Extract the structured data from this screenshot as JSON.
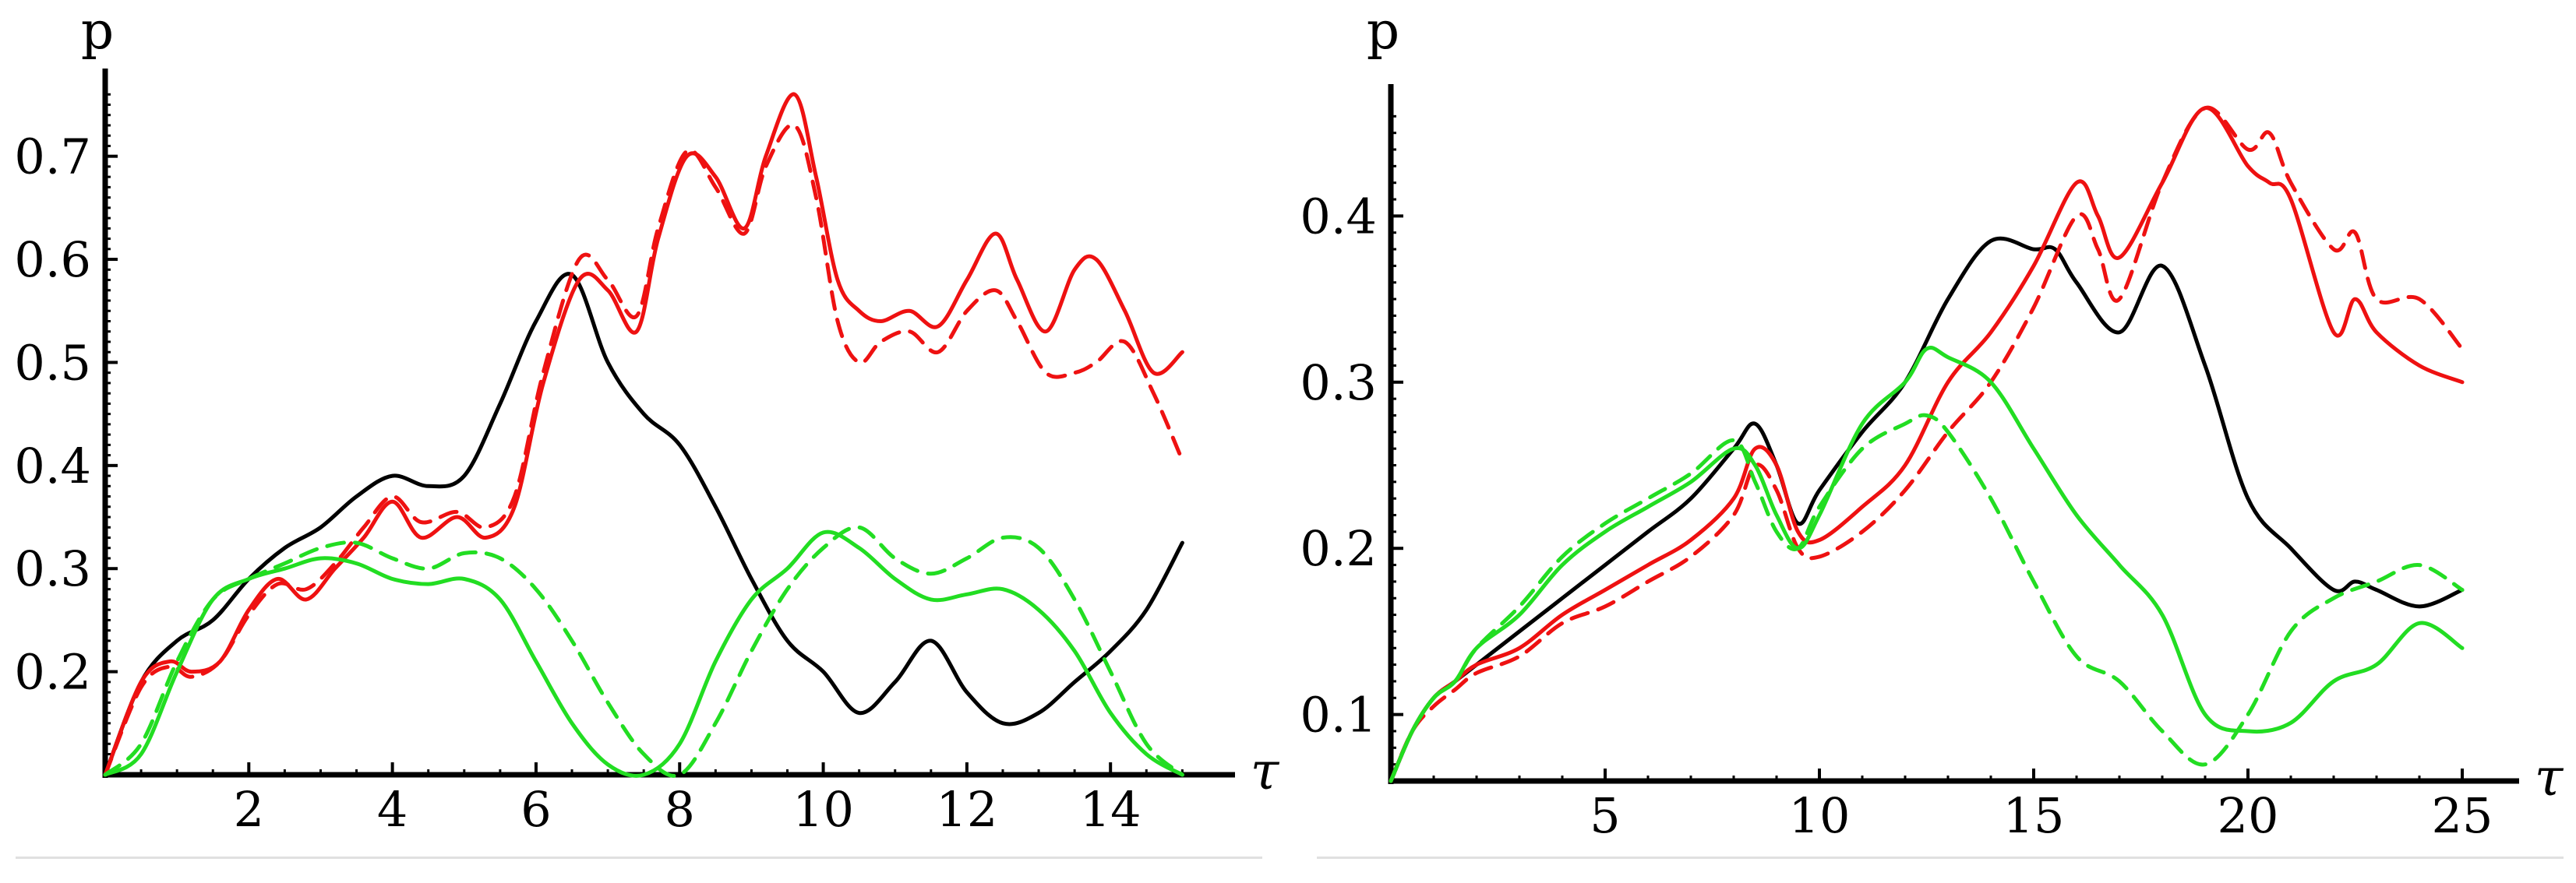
{
  "colors": {
    "red": "#ee1111",
    "green": "#22dd22",
    "black": "#000000"
  },
  "chart_data": [
    {
      "type": "line",
      "xlabel": "τ",
      "ylabel": "p",
      "xlim": [
        0,
        15.3
      ],
      "ylim": [
        0.1,
        0.77
      ],
      "xticks": [
        2,
        4,
        6,
        8,
        10,
        12,
        14
      ],
      "yticks": [
        0.2,
        0.3,
        0.4,
        0.5,
        0.6,
        0.7
      ],
      "series": [
        {
          "color": "black",
          "dashed": false,
          "x": [
            0,
            0.5,
            1,
            1.5,
            2,
            2.5,
            3,
            3.5,
            4,
            4.5,
            5,
            5.5,
            6,
            6.5,
            7,
            7.5,
            8,
            8.5,
            9,
            9.5,
            10,
            10.5,
            11,
            11.5,
            12,
            12.5,
            13,
            13.5,
            14,
            14.5,
            15
          ],
          "y": [
            0.1,
            0.19,
            0.23,
            0.25,
            0.29,
            0.32,
            0.34,
            0.37,
            0.39,
            0.38,
            0.39,
            0.46,
            0.54,
            0.585,
            0.5,
            0.45,
            0.42,
            0.36,
            0.29,
            0.23,
            0.2,
            0.16,
            0.19,
            0.23,
            0.18,
            0.15,
            0.16,
            0.19,
            0.22,
            0.26,
            0.325
          ]
        },
        {
          "color": "red",
          "dashed": false,
          "x": [
            0,
            0.5,
            0.9,
            1.2,
            1.6,
            2,
            2.4,
            2.8,
            3.2,
            3.6,
            4,
            4.4,
            4.9,
            5.3,
            5.7,
            6.1,
            6.6,
            7.0,
            7.4,
            7.7,
            8.1,
            8.5,
            8.9,
            9.2,
            9.6,
            9.9,
            10.2,
            10.5,
            10.8,
            11.2,
            11.6,
            12,
            12.4,
            12.7,
            13.1,
            13.5,
            13.8,
            14.2,
            14.6,
            15
          ],
          "y": [
            0.1,
            0.19,
            0.21,
            0.2,
            0.21,
            0.26,
            0.29,
            0.27,
            0.3,
            0.33,
            0.365,
            0.33,
            0.35,
            0.33,
            0.36,
            0.48,
            0.58,
            0.57,
            0.53,
            0.62,
            0.7,
            0.68,
            0.63,
            0.7,
            0.76,
            0.68,
            0.58,
            0.55,
            0.54,
            0.55,
            0.535,
            0.58,
            0.625,
            0.58,
            0.53,
            0.59,
            0.6,
            0.55,
            0.49,
            0.51
          ]
        },
        {
          "color": "red",
          "dashed": true,
          "x": [
            0,
            0.5,
            0.9,
            1.2,
            1.6,
            2,
            2.4,
            2.8,
            3.2,
            3.6,
            4,
            4.4,
            4.9,
            5.3,
            5.7,
            6.1,
            6.6,
            7.0,
            7.4,
            7.7,
            8.1,
            8.5,
            8.9,
            9.2,
            9.6,
            9.9,
            10.2,
            10.5,
            10.8,
            11.2,
            11.6,
            12,
            12.4,
            12.7,
            13.1,
            13.5,
            13.8,
            14.2,
            14.6,
            15
          ],
          "y": [
            0.1,
            0.185,
            0.205,
            0.195,
            0.21,
            0.255,
            0.285,
            0.28,
            0.305,
            0.34,
            0.37,
            0.345,
            0.355,
            0.34,
            0.37,
            0.49,
            0.6,
            0.58,
            0.545,
            0.63,
            0.705,
            0.67,
            0.625,
            0.69,
            0.73,
            0.66,
            0.54,
            0.5,
            0.52,
            0.53,
            0.51,
            0.55,
            0.57,
            0.54,
            0.49,
            0.49,
            0.5,
            0.52,
            0.47,
            0.405
          ]
        },
        {
          "color": "green",
          "dashed": false,
          "x": [
            0,
            0.5,
            1,
            1.5,
            2,
            2.5,
            3,
            3.5,
            4,
            4.5,
            5,
            5.5,
            6,
            6.5,
            7,
            7.5,
            8,
            8.5,
            9,
            9.5,
            10,
            10.5,
            11,
            11.5,
            12,
            12.5,
            13,
            13.5,
            14,
            14.5,
            15
          ],
          "y": [
            0.1,
            0.12,
            0.2,
            0.27,
            0.29,
            0.3,
            0.31,
            0.305,
            0.29,
            0.285,
            0.29,
            0.27,
            0.21,
            0.15,
            0.11,
            0.1,
            0.13,
            0.21,
            0.27,
            0.3,
            0.335,
            0.32,
            0.29,
            0.27,
            0.275,
            0.28,
            0.26,
            0.22,
            0.16,
            0.12,
            0.1
          ]
        },
        {
          "color": "green",
          "dashed": true,
          "x": [
            0,
            0.5,
            1,
            1.5,
            2,
            2.5,
            3,
            3.5,
            4,
            4.5,
            5,
            5.5,
            6,
            6.5,
            7,
            7.5,
            8,
            8.5,
            9,
            9.5,
            10,
            10.5,
            11,
            11.5,
            12,
            12.5,
            13,
            13.5,
            14,
            14.5,
            15
          ],
          "y": [
            0.1,
            0.13,
            0.21,
            0.27,
            0.29,
            0.305,
            0.32,
            0.325,
            0.31,
            0.3,
            0.315,
            0.31,
            0.28,
            0.23,
            0.17,
            0.12,
            0.1,
            0.15,
            0.22,
            0.28,
            0.32,
            0.34,
            0.31,
            0.295,
            0.31,
            0.33,
            0.32,
            0.27,
            0.2,
            0.13,
            0.1
          ]
        }
      ]
    },
    {
      "type": "line",
      "xlabel": "τ",
      "ylabel": "p",
      "xlim": [
        0,
        25.6
      ],
      "ylim": [
        0.06,
        0.47
      ],
      "xticks": [
        5,
        10,
        15,
        20,
        25
      ],
      "yticks": [
        0.1,
        0.2,
        0.3,
        0.4
      ],
      "series": [
        {
          "color": "black",
          "dashed": false,
          "x": [
            0,
            0.5,
            1,
            1.5,
            2,
            3,
            4,
            5,
            6,
            7,
            8,
            8.5,
            9,
            9.5,
            10,
            11,
            12,
            13,
            14,
            15,
            15.5,
            16,
            17,
            18,
            19,
            20,
            21,
            22,
            22.5,
            23,
            24,
            25
          ],
          "y": [
            0.06,
            0.09,
            0.11,
            0.12,
            0.13,
            0.15,
            0.17,
            0.19,
            0.21,
            0.23,
            0.26,
            0.275,
            0.25,
            0.215,
            0.235,
            0.27,
            0.3,
            0.35,
            0.385,
            0.38,
            0.38,
            0.36,
            0.33,
            0.37,
            0.31,
            0.23,
            0.2,
            0.175,
            0.18,
            0.175,
            0.165,
            0.175
          ]
        },
        {
          "color": "red",
          "dashed": false,
          "x": [
            0,
            0.5,
            1,
            1.5,
            2,
            3,
            4,
            5,
            6,
            7,
            8,
            8.5,
            9,
            9.5,
            10,
            11,
            12,
            13,
            14,
            15,
            16,
            16.5,
            17,
            18,
            19,
            20,
            20.5,
            21,
            22,
            22.5,
            23,
            24,
            25
          ],
          "y": [
            0.06,
            0.09,
            0.11,
            0.12,
            0.13,
            0.14,
            0.16,
            0.175,
            0.19,
            0.205,
            0.23,
            0.26,
            0.25,
            0.21,
            0.205,
            0.225,
            0.25,
            0.3,
            0.33,
            0.37,
            0.42,
            0.4,
            0.375,
            0.42,
            0.465,
            0.43,
            0.42,
            0.41,
            0.33,
            0.35,
            0.33,
            0.31,
            0.3
          ]
        },
        {
          "color": "red",
          "dashed": true,
          "x": [
            0,
            0.5,
            1,
            1.5,
            2,
            3,
            4,
            5,
            6,
            7,
            8,
            8.5,
            9,
            9.5,
            10,
            11,
            12,
            13,
            14,
            15,
            16,
            16.5,
            17,
            18,
            19,
            20,
            20.5,
            21,
            22,
            22.5,
            23,
            24,
            25
          ],
          "y": [
            0.06,
            0.09,
            0.105,
            0.115,
            0.125,
            0.135,
            0.155,
            0.165,
            0.18,
            0.195,
            0.22,
            0.25,
            0.235,
            0.2,
            0.195,
            0.21,
            0.235,
            0.27,
            0.3,
            0.345,
            0.4,
            0.38,
            0.35,
            0.42,
            0.465,
            0.44,
            0.45,
            0.42,
            0.38,
            0.39,
            0.35,
            0.35,
            0.32
          ]
        },
        {
          "color": "green",
          "dashed": false,
          "x": [
            0,
            0.5,
            1,
            1.5,
            2,
            3,
            4,
            5,
            6,
            7,
            8,
            8.5,
            9,
            9.5,
            10,
            11,
            12,
            12.5,
            13,
            14,
            15,
            16,
            17,
            18,
            19,
            20,
            21,
            22,
            23,
            24,
            25
          ],
          "y": [
            0.06,
            0.09,
            0.11,
            0.12,
            0.14,
            0.16,
            0.19,
            0.21,
            0.225,
            0.24,
            0.26,
            0.25,
            0.22,
            0.2,
            0.22,
            0.275,
            0.3,
            0.32,
            0.315,
            0.3,
            0.26,
            0.22,
            0.19,
            0.16,
            0.1,
            0.09,
            0.095,
            0.12,
            0.13,
            0.155,
            0.14
          ]
        },
        {
          "color": "green",
          "dashed": true,
          "x": [
            0,
            0.5,
            1,
            1.5,
            2,
            3,
            4,
            5,
            6,
            7,
            8,
            8.5,
            9,
            9.5,
            10,
            11,
            12,
            12.5,
            13,
            14,
            15,
            16,
            17,
            18,
            19,
            20,
            21,
            22,
            23,
            24,
            25
          ],
          "y": [
            0.06,
            0.09,
            0.11,
            0.12,
            0.14,
            0.165,
            0.195,
            0.215,
            0.23,
            0.245,
            0.265,
            0.24,
            0.21,
            0.2,
            0.225,
            0.26,
            0.275,
            0.28,
            0.27,
            0.23,
            0.18,
            0.135,
            0.12,
            0.09,
            0.07,
            0.1,
            0.15,
            0.17,
            0.18,
            0.19,
            0.175
          ]
        }
      ]
    }
  ]
}
